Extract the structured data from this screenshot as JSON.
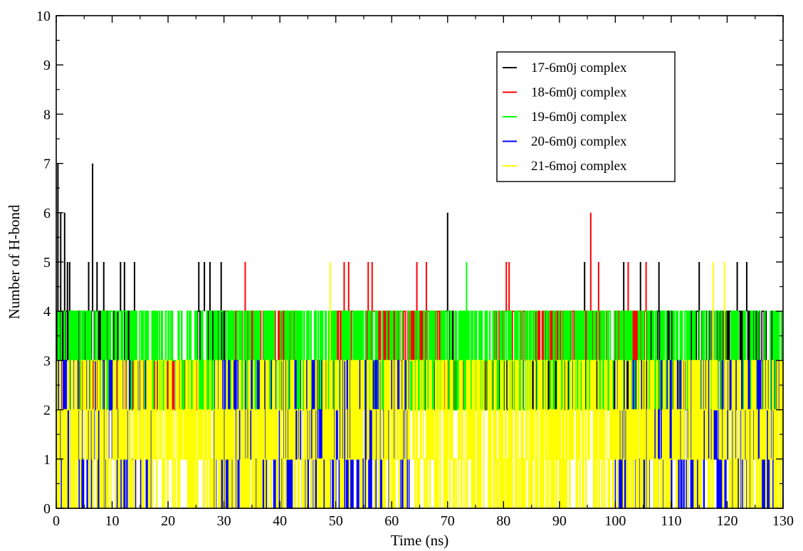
{
  "chart_data": {
    "type": "line",
    "title": "",
    "xlabel": "Time (ns)",
    "ylabel": "Number of H-bond",
    "xlim": [
      0,
      130
    ],
    "ylim": [
      0,
      10
    ],
    "x_ticks": [
      0,
      10,
      20,
      30,
      40,
      50,
      60,
      70,
      80,
      90,
      100,
      110,
      120,
      130
    ],
    "y_ticks": [
      0,
      1,
      2,
      3,
      4,
      5,
      6,
      7,
      8,
      9,
      10
    ],
    "grid": false,
    "legend_position": "top-right",
    "series": [
      {
        "name": "17-6m0j complex",
        "color": "#000000",
        "peaks": [
          [
            0.3,
            7
          ],
          [
            0.8,
            6
          ],
          [
            1.5,
            6
          ],
          [
            2,
            5
          ],
          [
            2.4,
            5
          ],
          [
            5.8,
            5
          ],
          [
            6.5,
            7
          ],
          [
            7.3,
            5
          ],
          [
            8.5,
            5
          ],
          [
            11.5,
            5
          ],
          [
            12.2,
            5
          ],
          [
            14,
            5
          ],
          [
            25.5,
            5
          ],
          [
            26.5,
            5
          ],
          [
            27.5,
            5
          ],
          [
            29.5,
            5
          ],
          [
            70,
            6
          ],
          [
            94.5,
            5
          ],
          [
            101.5,
            5
          ],
          [
            104.5,
            5
          ],
          [
            107.8,
            5
          ],
          [
            115,
            5
          ],
          [
            121.8,
            5
          ],
          [
            123.5,
            5
          ]
        ],
        "baseline_range": [
          3,
          4
        ],
        "active_ranges": [
          [
            0,
            14
          ],
          [
            25,
            31
          ],
          [
            69,
            71
          ],
          [
            106,
            110
          ],
          [
            113,
            128
          ]
        ]
      },
      {
        "name": "18-6m0j complex",
        "color": "#ff0000",
        "peaks": [
          [
            33.8,
            5
          ],
          [
            51.5,
            5
          ],
          [
            52.3,
            5
          ],
          [
            55.8,
            5
          ],
          [
            56.5,
            5
          ],
          [
            64.5,
            5
          ],
          [
            66.2,
            5
          ],
          [
            80.5,
            5
          ],
          [
            81,
            5
          ],
          [
            95.6,
            6
          ],
          [
            97,
            5
          ],
          [
            102.3,
            5
          ],
          [
            105.5,
            5
          ]
        ],
        "baseline_range": [
          3,
          4
        ],
        "active_ranges": [
          [
            30,
            43
          ],
          [
            50,
            69
          ],
          [
            78,
            99
          ],
          [
            100,
            106
          ]
        ]
      },
      {
        "name": "19-6m0j complex",
        "color": "#00ff00",
        "peaks": [
          [
            73.4,
            5
          ]
        ],
        "baseline_range": [
          2,
          4
        ],
        "active_ranges": [
          [
            0,
            130
          ]
        ]
      },
      {
        "name": "20-6m0j complex",
        "color": "#0000ff",
        "peaks": [],
        "baseline_range": [
          0,
          3
        ],
        "active_ranges": [
          [
            0,
            17
          ],
          [
            28,
            63
          ],
          [
            100,
            130
          ]
        ]
      },
      {
        "name": "21-6moj complex",
        "color": "#ffff00",
        "peaks": [
          [
            49,
            5
          ],
          [
            117.5,
            5
          ],
          [
            119.5,
            5
          ]
        ],
        "baseline_range": [
          0,
          3
        ],
        "active_ranges": [
          [
            0,
            130
          ]
        ]
      }
    ]
  }
}
